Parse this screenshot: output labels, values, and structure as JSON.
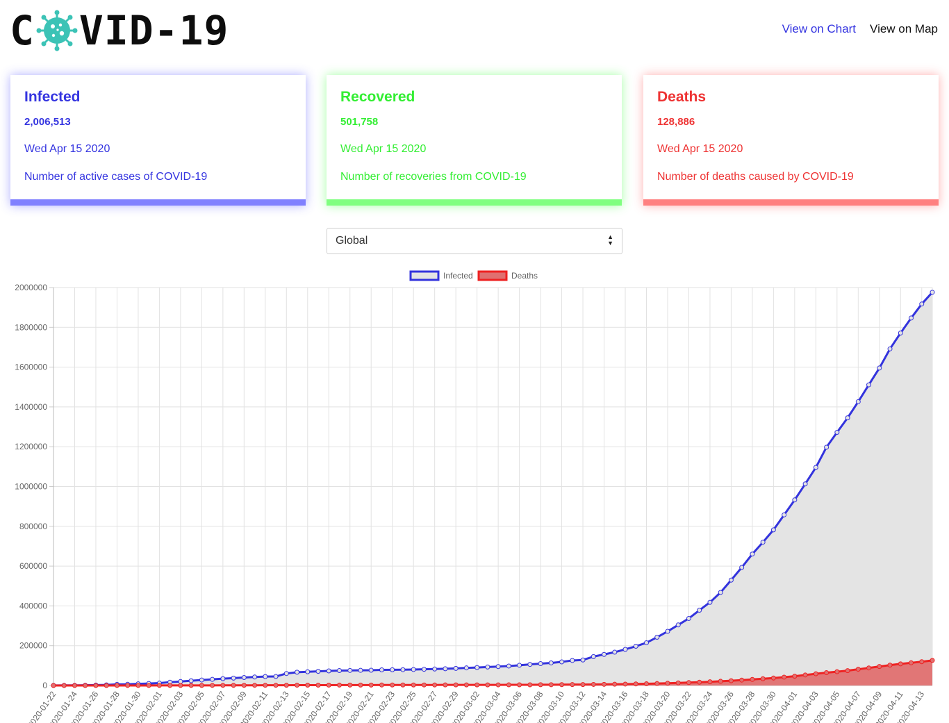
{
  "header": {
    "logo_prefix": "C",
    "logo_suffix": "VID-19",
    "logo_icon": "virus-icon",
    "nav": {
      "chart_label": "View on Chart",
      "map_label": "View on Map"
    }
  },
  "cards": {
    "infected": {
      "title": "Infected",
      "count": "2,006,513",
      "date": "Wed Apr 15 2020",
      "description": "Number of active cases of COVID-19",
      "color": "#3535e0"
    },
    "recovered": {
      "title": "Recovered",
      "count": "501,758",
      "date": "Wed Apr 15 2020",
      "description": "Number of recoveries from COVID-19",
      "color": "#33ee33"
    },
    "deaths": {
      "title": "Deaths",
      "count": "128,886",
      "date": "Wed Apr 15 2020",
      "description": "Number of deaths caused by COVID-19",
      "color": "#ee3333"
    }
  },
  "country_select": {
    "selected": "Global"
  },
  "chart_data": {
    "type": "line",
    "legend": [
      "Infected",
      "Deaths"
    ],
    "legend_position": "top-center",
    "grid": true,
    "ylim": [
      0,
      2000000
    ],
    "yticks": [
      0,
      200000,
      400000,
      600000,
      800000,
      1000000,
      1200000,
      1400000,
      1600000,
      1800000,
      2000000
    ],
    "x_start": "2020-01-22",
    "x_end": "2020-04-14",
    "xtick_labels": [
      "2020-01-22",
      "2020-01-24",
      "2020-01-26",
      "2020-01-28",
      "2020-01-30",
      "2020-02-01",
      "2020-02-03",
      "2020-02-05",
      "2020-02-07",
      "2020-02-09",
      "2020-02-11",
      "2020-02-13",
      "2020-02-15",
      "2020-02-17",
      "2020-02-19",
      "2020-02-21",
      "2020-02-23",
      "2020-02-25",
      "2020-02-27",
      "2020-02-29",
      "2020-03-02",
      "2020-03-04",
      "2020-03-06",
      "2020-03-08",
      "2020-03-10",
      "2020-03-12",
      "2020-03-14",
      "2020-03-16",
      "2020-03-18",
      "2020-03-20",
      "2020-03-22",
      "2020-03-24",
      "2020-03-26",
      "2020-03-28",
      "2020-03-30",
      "2020-04-01",
      "2020-04-03",
      "2020-04-05",
      "2020-04-07",
      "2020-04-09",
      "2020-04-11",
      "2020-04-13"
    ],
    "series": [
      {
        "name": "Infected",
        "color": "#3333dd",
        "fill": "#e4e4e4",
        "values": [
          555,
          654,
          941,
          1434,
          2118,
          2927,
          5578,
          6166,
          8234,
          9927,
          12038,
          16787,
          19881,
          23892,
          27635,
          30794,
          34391,
          37120,
          40150,
          42762,
          44802,
          45221,
          60368,
          66885,
          69030,
          71224,
          73258,
          75136,
          75639,
          76197,
          76819,
          78572,
          78958,
          79561,
          80406,
          81388,
          82746,
          84112,
          86011,
          88369,
          90306,
          92840,
          95120,
          97886,
          101801,
          105847,
          109821,
          113590,
          118620,
          125875,
          128352,
          145205,
          156101,
          167454,
          181574,
          197102,
          214821,
          242500,
          272035,
          304396,
          336953,
          378235,
          418045,
          467653,
          529591,
          593291,
          660706,
          720117,
          782365,
          857487,
          932605,
          1013157,
          1095917,
          1197405,
          1272115,
          1345101,
          1426096,
          1511104,
          1595350,
          1691719,
          1771514,
          1846679,
          1917319,
          1976191
        ]
      },
      {
        "name": "Deaths",
        "color": "#ee2222",
        "fill": "#e07070",
        "values": [
          17,
          18,
          26,
          42,
          56,
          82,
          131,
          133,
          171,
          213,
          259,
          362,
          426,
          492,
          564,
          634,
          719,
          806,
          906,
          1013,
          1113,
          1118,
          1371,
          1523,
          1666,
          1770,
          1868,
          2007,
          2122,
          2247,
          2251,
          2458,
          2469,
          2629,
          2708,
          2770,
          2814,
          2872,
          2941,
          2996,
          3085,
          3160,
          3254,
          3348,
          3460,
          3558,
          3802,
          3988,
          4262,
          4615,
          4720,
          5404,
          5819,
          6440,
          7126,
          7905,
          8733,
          9867,
          11299,
          12973,
          14651,
          16505,
          18625,
          21181,
          23970,
          27198,
          30652,
          33925,
          37582,
          42107,
          46809,
          52983,
          58787,
          64606,
          69374,
          74565,
          81865,
          88338,
          95455,
          102525,
          108503,
          114091,
          119482,
          125984
        ]
      }
    ]
  }
}
